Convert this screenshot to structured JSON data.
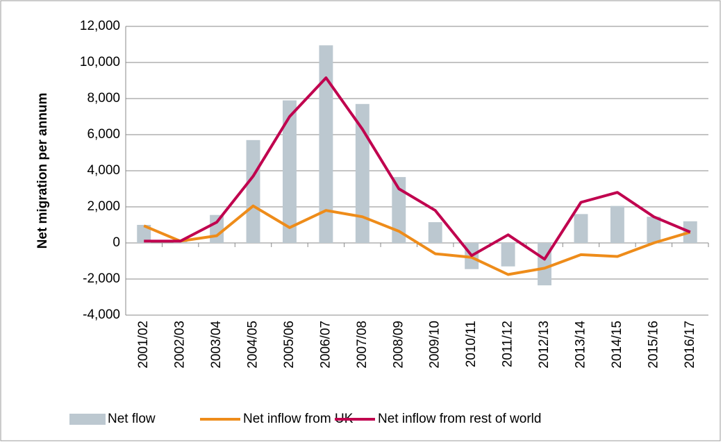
{
  "chart_data": {
    "type": "bar-line",
    "y_label": "Net migration per annum",
    "categories": [
      "2001/02",
      "2002/03",
      "2003/04",
      "2004/05",
      "2005/06",
      "2006/07",
      "2007/08",
      "2008/09",
      "2009/10",
      "2010/11",
      "2011/12",
      "2012/13",
      "2013/14",
      "2014/15",
      "2015/16",
      "2016/17"
    ],
    "series": [
      {
        "name": "Net flow",
        "type": "bar",
        "color": "#bcc8d0",
        "values": [
          1000,
          100,
          1550,
          5700,
          7900,
          10950,
          7700,
          3650,
          1150,
          -1450,
          -1300,
          -2350,
          1600,
          2050,
          1450,
          1200
        ]
      },
      {
        "name": "Net inflow from UK",
        "type": "line",
        "color": "#ee8c1a",
        "values": [
          950,
          100,
          400,
          2050,
          850,
          1800,
          1450,
          650,
          -600,
          -800,
          -1750,
          -1400,
          -650,
          -750,
          0,
          600
        ]
      },
      {
        "name": "Net inflow from rest of world",
        "type": "line",
        "color": "#c0004e",
        "values": [
          100,
          100,
          1150,
          3700,
          7000,
          9150,
          6300,
          3000,
          1800,
          -700,
          450,
          -900,
          2250,
          2800,
          1450,
          600
        ]
      }
    ],
    "ylim": [
      -4000,
      12000
    ],
    "yticks": [
      {
        "value": -4000,
        "label": "-4,000"
      },
      {
        "value": -2000,
        "label": "-2,000"
      },
      0,
      {
        "value": 2000,
        "label": "2,000"
      },
      {
        "value": 4000,
        "label": "4,000"
      },
      {
        "value": 6000,
        "label": "6,000"
      },
      {
        "value": 8000,
        "label": "8,000"
      },
      {
        "value": 10000,
        "label": "10,000"
      },
      {
        "value": 12000,
        "label": "12,000"
      }
    ],
    "grid": true,
    "legend": "bottom"
  }
}
